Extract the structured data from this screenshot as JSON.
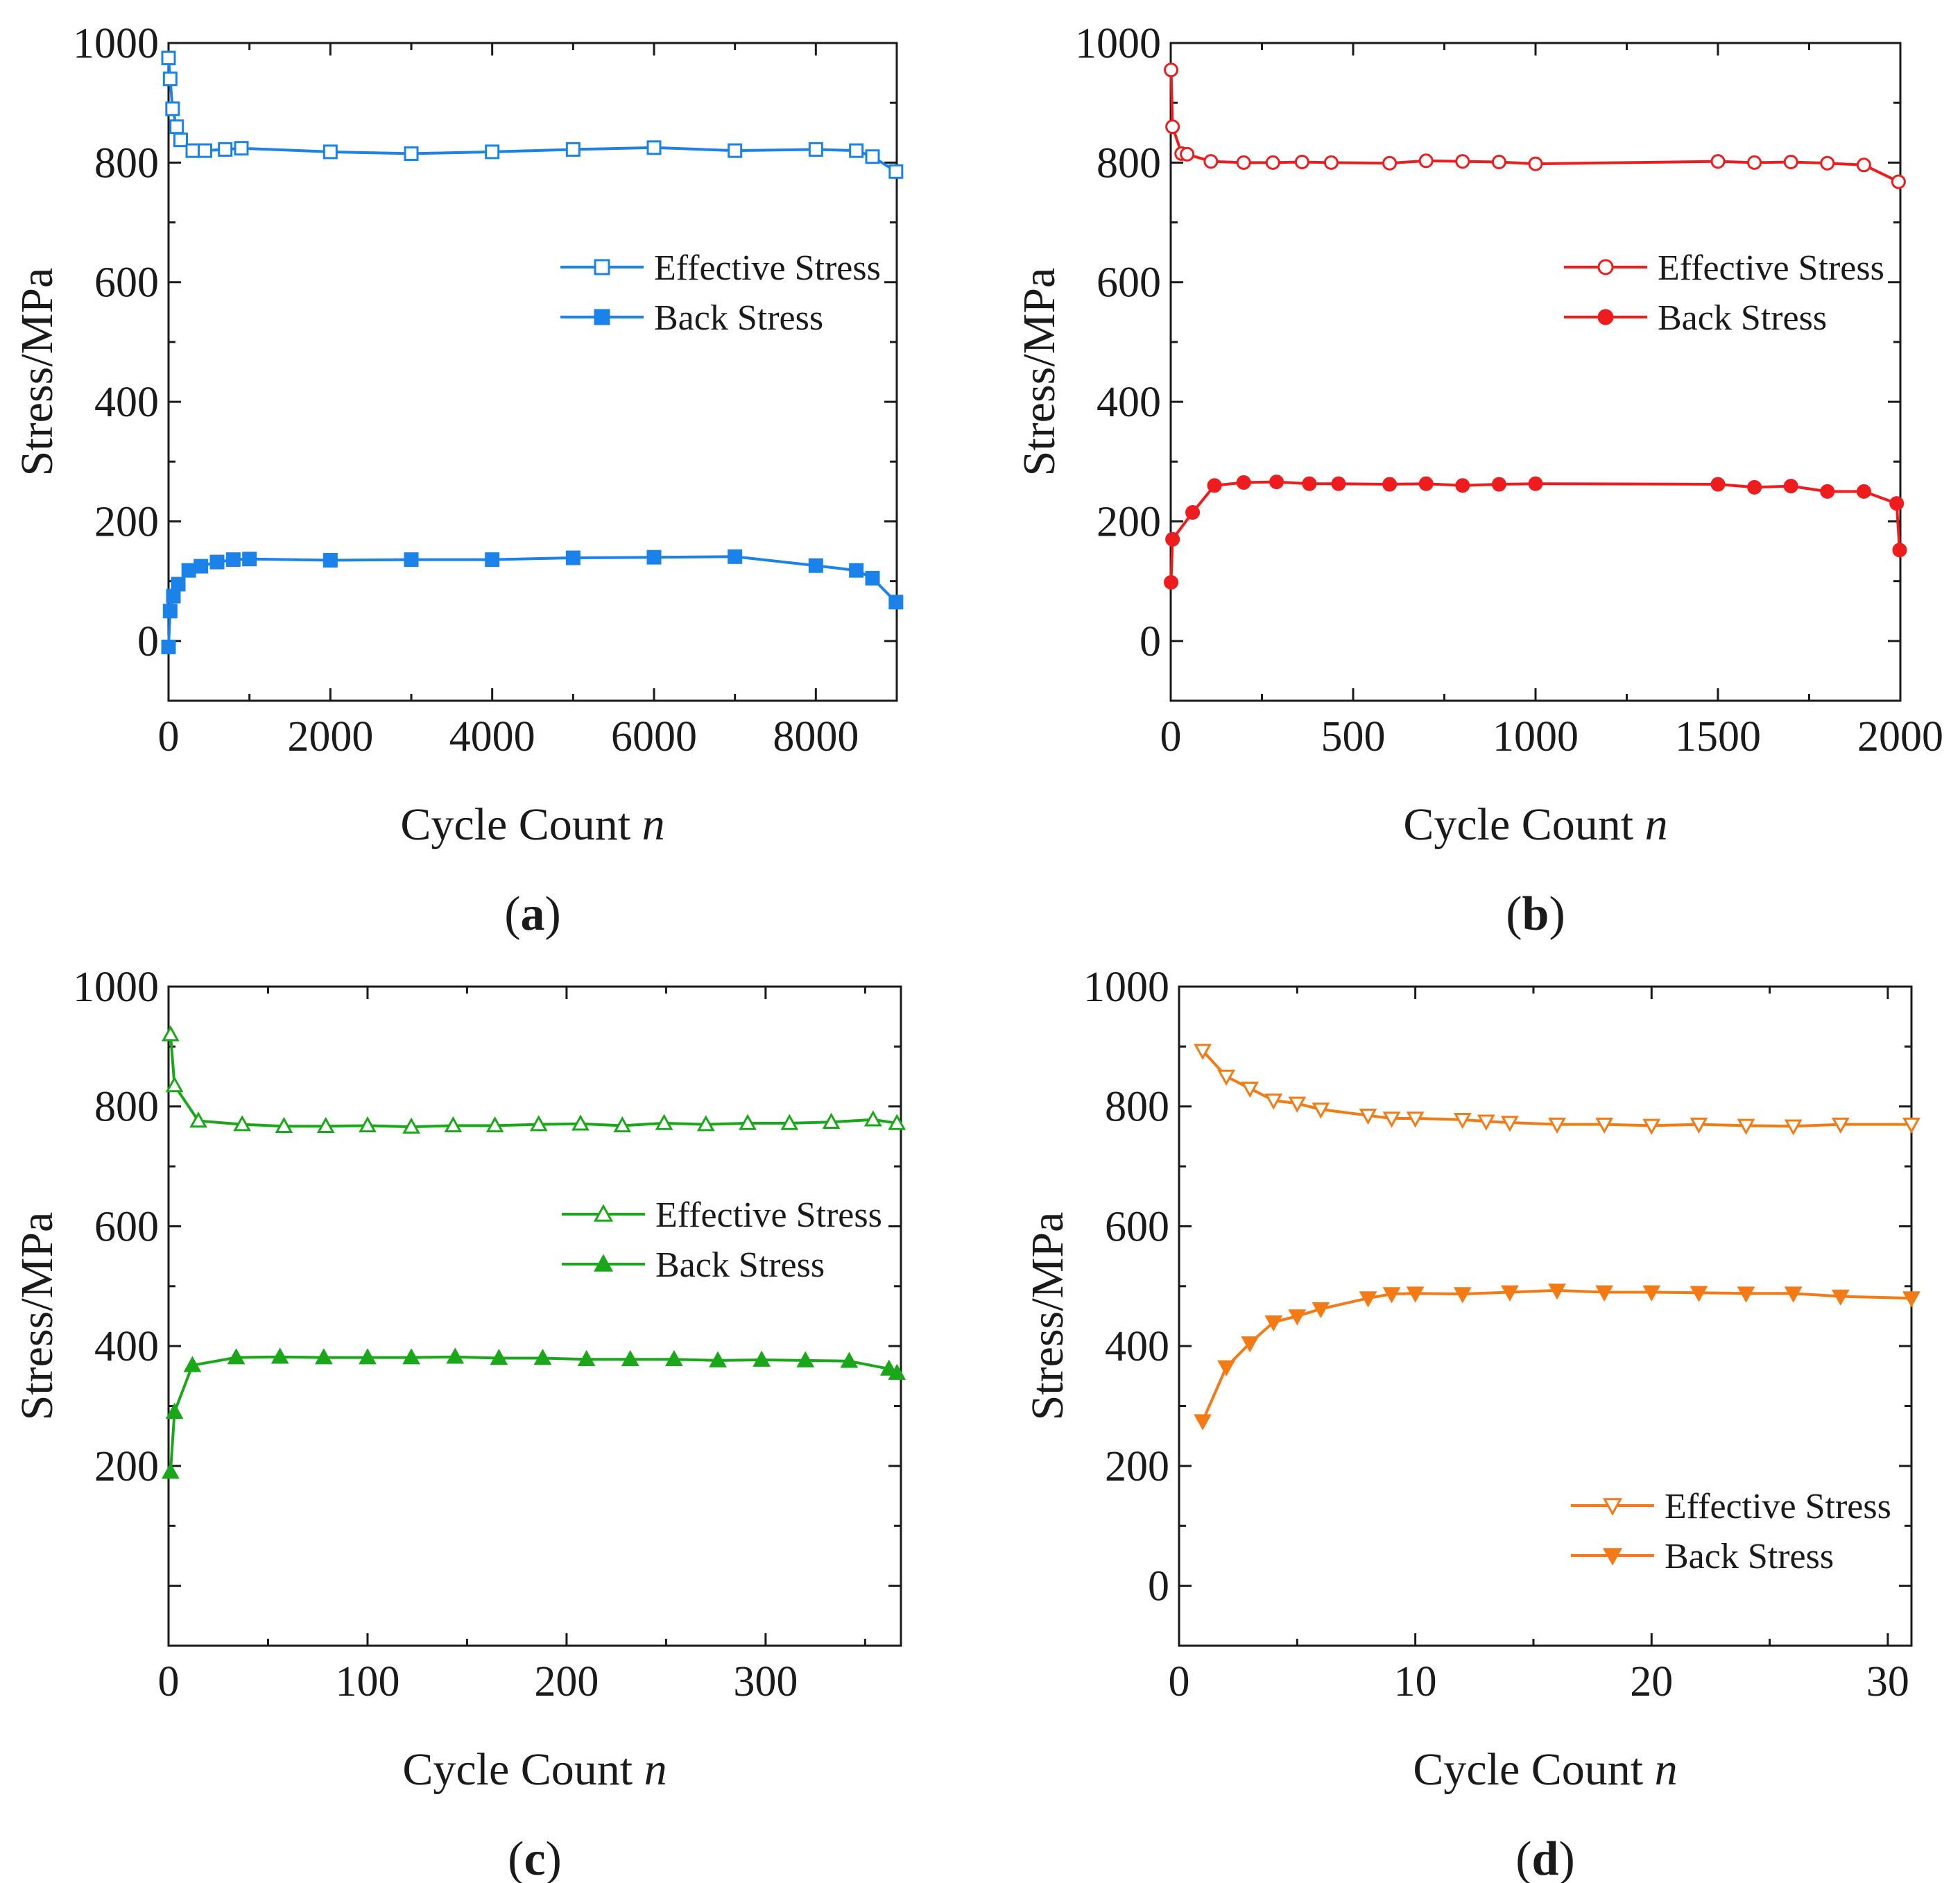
{
  "chart_data": [
    {
      "panel": "(a)",
      "panel_letter": "a",
      "type": "line",
      "color": "#1a82e8",
      "xlabel": "Cycle Count",
      "xlabel_var": "n",
      "ylabel": "Stress/MPa",
      "xlim": [
        0,
        9000
      ],
      "ylim": [
        -100,
        1000
      ],
      "xticks": [
        0,
        2000,
        4000,
        6000,
        8000
      ],
      "yticks": [
        0,
        200,
        400,
        600,
        800,
        1000
      ],
      "legend": {
        "position": "center-right"
      },
      "series": [
        {
          "name": "Effective Stress",
          "marker": "square",
          "filled": false,
          "x": [
            0,
            20,
            50,
            100,
            150,
            300,
            450,
            700,
            900,
            2000,
            3000,
            4000,
            5000,
            6000,
            7000,
            8000,
            8500,
            8700,
            8990
          ],
          "y": [
            975,
            940,
            890,
            860,
            838,
            820,
            820,
            822,
            824,
            818,
            815,
            818,
            822,
            825,
            820,
            822,
            820,
            810,
            785
          ]
        },
        {
          "name": "Back Stress",
          "marker": "square",
          "filled": true,
          "x": [
            0,
            20,
            60,
            120,
            250,
            400,
            600,
            800,
            1000,
            2000,
            3000,
            4000,
            5000,
            6000,
            7000,
            8000,
            8500,
            8700,
            8990
          ],
          "y": [
            -10,
            50,
            75,
            95,
            118,
            125,
            132,
            136,
            137,
            135,
            136,
            136,
            139,
            140,
            141,
            126,
            118,
            105,
            65
          ]
        }
      ]
    },
    {
      "panel": "(b)",
      "panel_letter": "b",
      "type": "line",
      "color": "#ee1c1c",
      "xlabel": "Cycle Count",
      "xlabel_var": "n",
      "ylabel": "Stress/MPa",
      "xlim": [
        0,
        2000
      ],
      "ylim": [
        -100,
        1000
      ],
      "xticks": [
        0,
        500,
        1000,
        1500,
        2000
      ],
      "yticks": [
        0,
        200,
        400,
        600,
        800,
        1000
      ],
      "legend": {
        "position": "top-right"
      },
      "series": [
        {
          "name": "Effective Stress",
          "marker": "circle",
          "filled": false,
          "x": [
            1,
            5,
            30,
            45,
            110,
            200,
            280,
            360,
            440,
            600,
            700,
            800,
            900,
            1000,
            1500,
            1600,
            1700,
            1800,
            1900,
            1995
          ],
          "y": [
            955,
            860,
            815,
            814,
            802,
            800,
            800,
            801,
            800,
            799,
            803,
            802,
            801,
            798,
            802,
            800,
            801,
            799,
            796,
            768
          ]
        },
        {
          "name": "Back Stress",
          "marker": "circle",
          "filled": true,
          "x": [
            1,
            5,
            60,
            120,
            200,
            290,
            380,
            460,
            600,
            700,
            800,
            900,
            1000,
            1500,
            1600,
            1700,
            1800,
            1900,
            1990,
            1998
          ],
          "y": [
            98,
            170,
            215,
            260,
            265,
            266,
            263,
            263,
            262,
            263,
            260,
            262,
            263,
            262,
            257,
            259,
            250,
            250,
            230,
            152
          ]
        }
      ]
    },
    {
      "panel": "(c)",
      "panel_letter": "c",
      "type": "line",
      "color": "#1aa81a",
      "xlabel": "Cycle Count",
      "xlabel_var": "n",
      "ylabel": "Stress/MPa",
      "xlim": [
        0,
        368
      ],
      "ylim": [
        -100,
        1000
      ],
      "xticks": [
        0,
        100,
        200,
        300
      ],
      "yticks": [
        200,
        400,
        600,
        800,
        1000
      ],
      "legend": {
        "position": "center-right"
      },
      "series": [
        {
          "name": "Effective Stress",
          "marker": "triangle-up",
          "filled": false,
          "x": [
            1,
            3,
            15,
            37,
            58,
            79,
            100,
            122,
            143,
            164,
            186,
            207,
            228,
            249,
            270,
            291,
            312,
            333,
            354,
            366
          ],
          "y": [
            920,
            835,
            776,
            770,
            767,
            767,
            768,
            766,
            768,
            768,
            770,
            771,
            768,
            772,
            770,
            772,
            772,
            774,
            778,
            772
          ]
        },
        {
          "name": "Back Stress",
          "marker": "triangle-up",
          "filled": true,
          "x": [
            1,
            3,
            12,
            34,
            56,
            78,
            100,
            122,
            144,
            166,
            188,
            210,
            232,
            254,
            276,
            298,
            320,
            342,
            362,
            366
          ],
          "y": [
            190,
            290,
            368,
            381,
            382,
            381,
            381,
            381,
            382,
            380,
            380,
            378,
            378,
            378,
            376,
            377,
            376,
            375,
            362,
            355
          ]
        }
      ]
    },
    {
      "panel": "(d)",
      "panel_letter": "d",
      "type": "line",
      "color": "#f47a16",
      "xlabel": "Cycle Count",
      "xlabel_var": "n",
      "ylabel": "Stress/MPa",
      "xlim": [
        0,
        31
      ],
      "ylim": [
        -100,
        1000
      ],
      "xticks": [
        0,
        10,
        20,
        30
      ],
      "yticks": [
        0,
        200,
        400,
        600,
        800,
        1000
      ],
      "legend": {
        "position": "bottom-right"
      },
      "series": [
        {
          "name": "Effective Stress",
          "marker": "triangle-down",
          "filled": false,
          "x": [
            1,
            2,
            3,
            4,
            5,
            6,
            8,
            9,
            10,
            12,
            13,
            14,
            16,
            18,
            20,
            22,
            24,
            26,
            28,
            31
          ],
          "y": [
            893,
            850,
            830,
            810,
            805,
            795,
            785,
            780,
            780,
            778,
            775,
            773,
            770,
            770,
            768,
            770,
            768,
            767,
            770,
            770
          ]
        },
        {
          "name": "Back Stress",
          "marker": "triangle-down",
          "filled": true,
          "x": [
            1,
            2,
            3,
            4,
            5,
            6,
            8,
            9,
            10,
            12,
            14,
            16,
            18,
            20,
            22,
            24,
            26,
            28,
            31
          ],
          "y": [
            275,
            365,
            405,
            440,
            450,
            462,
            480,
            487,
            488,
            487,
            490,
            493,
            490,
            490,
            489,
            488,
            488,
            483,
            480
          ]
        }
      ]
    }
  ]
}
